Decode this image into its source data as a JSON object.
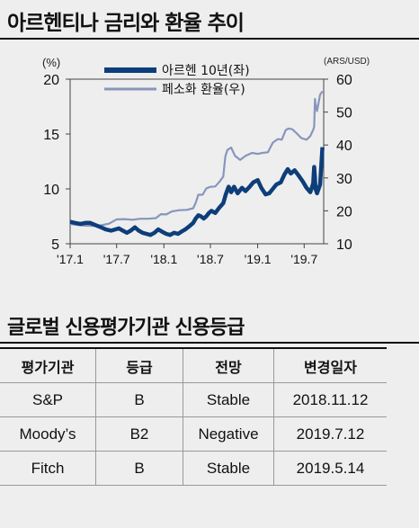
{
  "header": {
    "title": "아르헨티나 금리와 환율 추이"
  },
  "chart_data": {
    "type": "line",
    "left_unit": "(%)",
    "right_unit": "(ARS/USD)",
    "left_ylim": [
      5,
      20
    ],
    "left_ticks": [
      "5",
      "10",
      "15",
      "20"
    ],
    "right_ylim": [
      10,
      60
    ],
    "right_ticks": [
      "10",
      "20",
      "30",
      "40",
      "50",
      "60"
    ],
    "x_ticks": [
      "'17.1",
      "'17.7",
      "'18.1",
      "'18.7",
      "'19.1",
      "'19.7"
    ],
    "x_range": [
      "2017-01-01",
      "2019-09-15"
    ],
    "grid": false,
    "legend_position": "top",
    "colors": {
      "rate": "#0d3e7a",
      "fx": "#8896bc"
    },
    "series": [
      {
        "name": "아르헨 10년(좌)",
        "axis": "left",
        "x": [
          "2017-01-01",
          "2017-01-20",
          "2017-02-10",
          "2017-03-01",
          "2017-03-20",
          "2017-04-10",
          "2017-05-01",
          "2017-05-20",
          "2017-06-10",
          "2017-06-25",
          "2017-07-10",
          "2017-07-25",
          "2017-08-10",
          "2017-08-25",
          "2017-09-10",
          "2017-09-25",
          "2017-10-10",
          "2017-10-25",
          "2017-11-10",
          "2017-11-25",
          "2017-12-10",
          "2017-12-25",
          "2018-01-10",
          "2018-01-25",
          "2018-02-10",
          "2018-02-25",
          "2018-03-10",
          "2018-03-25",
          "2018-04-10",
          "2018-04-25",
          "2018-05-05",
          "2018-05-15",
          "2018-05-25",
          "2018-06-05",
          "2018-06-15",
          "2018-06-25",
          "2018-07-05",
          "2018-07-20",
          "2018-08-05",
          "2018-08-20",
          "2018-08-30",
          "2018-09-10",
          "2018-09-20",
          "2018-10-01",
          "2018-10-15",
          "2018-11-01",
          "2018-11-15",
          "2018-12-01",
          "2018-12-15",
          "2019-01-01",
          "2019-01-15",
          "2019-02-01",
          "2019-02-15",
          "2019-03-01",
          "2019-03-15",
          "2019-04-01",
          "2019-04-15",
          "2019-04-28",
          "2019-05-10",
          "2019-05-25",
          "2019-06-10",
          "2019-06-25",
          "2019-07-10",
          "2019-07-25",
          "2019-08-05",
          "2019-08-09",
          "2019-08-12",
          "2019-08-14",
          "2019-08-20",
          "2019-09-01",
          "2019-09-10"
        ],
        "y": [
          7.0,
          6.9,
          6.8,
          6.9,
          6.9,
          6.7,
          6.5,
          6.3,
          6.2,
          6.3,
          6.4,
          6.2,
          6.0,
          6.2,
          6.5,
          6.2,
          6.0,
          5.9,
          5.8,
          6.0,
          6.3,
          6.1,
          5.9,
          5.8,
          6.0,
          5.9,
          6.1,
          6.3,
          6.6,
          6.9,
          7.3,
          7.6,
          7.5,
          7.3,
          7.5,
          7.8,
          8.0,
          7.8,
          8.3,
          8.7,
          9.5,
          10.2,
          9.7,
          10.2,
          9.6,
          10.1,
          9.8,
          10.2,
          10.6,
          10.8,
          10.1,
          9.5,
          9.6,
          10.0,
          10.4,
          10.6,
          11.3,
          11.8,
          11.4,
          11.7,
          11.2,
          10.7,
          10.1,
          9.7,
          10.5,
          12.0,
          11.0,
          10.0,
          9.6,
          10.4,
          13.8
        ]
      },
      {
        "name": "페소화 환율(우)",
        "axis": "right",
        "x": [
          "2017-01-01",
          "2017-02-01",
          "2017-03-01",
          "2017-04-01",
          "2017-05-01",
          "2017-06-01",
          "2017-07-01",
          "2017-08-01",
          "2017-09-01",
          "2017-10-01",
          "2017-11-01",
          "2017-12-01",
          "2017-12-20",
          "2018-01-10",
          "2018-02-01",
          "2018-03-01",
          "2018-04-01",
          "2018-04-25",
          "2018-05-05",
          "2018-05-15",
          "2018-06-01",
          "2018-06-15",
          "2018-07-01",
          "2018-07-20",
          "2018-08-05",
          "2018-08-20",
          "2018-08-28",
          "2018-09-05",
          "2018-09-20",
          "2018-10-05",
          "2018-10-25",
          "2018-11-15",
          "2018-12-10",
          "2019-01-01",
          "2019-01-20",
          "2019-02-10",
          "2019-03-01",
          "2019-03-20",
          "2019-04-05",
          "2019-04-20",
          "2019-04-30",
          "2019-05-15",
          "2019-06-01",
          "2019-06-20",
          "2019-07-10",
          "2019-07-25",
          "2019-08-05",
          "2019-08-09",
          "2019-08-12",
          "2019-08-14",
          "2019-08-20",
          "2019-09-01",
          "2019-09-10"
        ],
        "y": [
          16.0,
          15.7,
          15.5,
          15.4,
          15.6,
          16.1,
          17.4,
          17.5,
          17.3,
          17.6,
          17.6,
          17.8,
          19.0,
          18.9,
          19.8,
          20.2,
          20.3,
          20.8,
          22.5,
          24.9,
          24.9,
          26.8,
          27.3,
          27.4,
          28.8,
          30.4,
          36.5,
          38.5,
          39.2,
          36.7,
          35.5,
          36.7,
          37.6,
          37.3,
          37.6,
          37.8,
          40.7,
          41.8,
          41.6,
          44.5,
          45.0,
          44.8,
          43.6,
          42.1,
          41.6,
          42.7,
          44.6,
          45.5,
          54.0,
          52.5,
          50.3,
          55.3,
          56.3
        ]
      }
    ]
  },
  "table": {
    "title": "글로벌 신용평가기관 신용등급",
    "headers": [
      "평가기관",
      "등급",
      "전망",
      "변경일자"
    ],
    "rows": [
      [
        "S&P",
        "B",
        "Stable",
        "2018.11.12"
      ],
      [
        "Moody’s",
        "B2",
        "Negative",
        "2019.7.12"
      ],
      [
        "Fitch",
        "B",
        "Stable",
        "2019.5.14"
      ]
    ]
  }
}
